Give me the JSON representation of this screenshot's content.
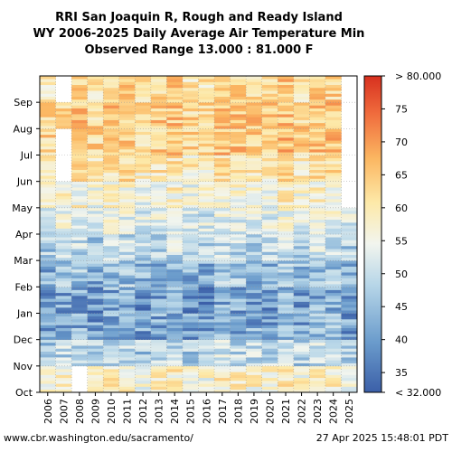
{
  "header": {
    "title_line1": "RRI San Joaquin R, Rough and Ready Island",
    "title_line2": "WY 2006-2025 Daily Average Air Temperature Min",
    "title_line3": "Observed Range 13.000 : 81.000 F"
  },
  "footer": {
    "source": "www.cbr.washington.edu/sacramento/",
    "timestamp": "27 Apr 2025 15:48:01 PDT"
  },
  "chart_data": {
    "type": "heatmap",
    "title": "RRI San Joaquin R, Rough and Ready Island WY 2006-2025 Daily Average Air Temperature Min",
    "x_categories": [
      "2006",
      "2007",
      "2008",
      "2009",
      "2010",
      "2011",
      "2012",
      "2013",
      "2014",
      "2015",
      "2016",
      "2017",
      "2018",
      "2019",
      "2020",
      "2021",
      "2022",
      "2023",
      "2024",
      "2025"
    ],
    "y_ticks": [
      "Oct",
      "Nov",
      "Dec",
      "Jan",
      "Feb",
      "Mar",
      "Apr",
      "May",
      "Jun",
      "Jul",
      "Aug",
      "Sep"
    ],
    "colorbar": {
      "min_label": "< 32.000",
      "max_label": "> 80.000",
      "ticks": [
        35,
        40,
        45,
        50,
        55,
        60,
        65,
        70,
        75
      ],
      "range": [
        32,
        80
      ],
      "colors": [
        "#3b5fa8",
        "#6b9ccc",
        "#b7d6e8",
        "#f2f5ee",
        "#fde9a8",
        "#fbb661",
        "#f06c3d",
        "#d7301f"
      ]
    },
    "monthly_mean_typical_F": [
      56,
      47,
      41,
      40,
      43,
      47,
      51,
      55,
      59,
      63,
      63,
      61
    ],
    "missing": [
      {
        "year": "2007",
        "from_month": "Jun",
        "to_month": "Jul"
      },
      {
        "year": "2007",
        "month": "Sep"
      },
      {
        "year": "2008",
        "month": "Oct"
      },
      {
        "year": "2025",
        "from_month": "May",
        "to_month": "Sep"
      }
    ],
    "grid": true
  }
}
